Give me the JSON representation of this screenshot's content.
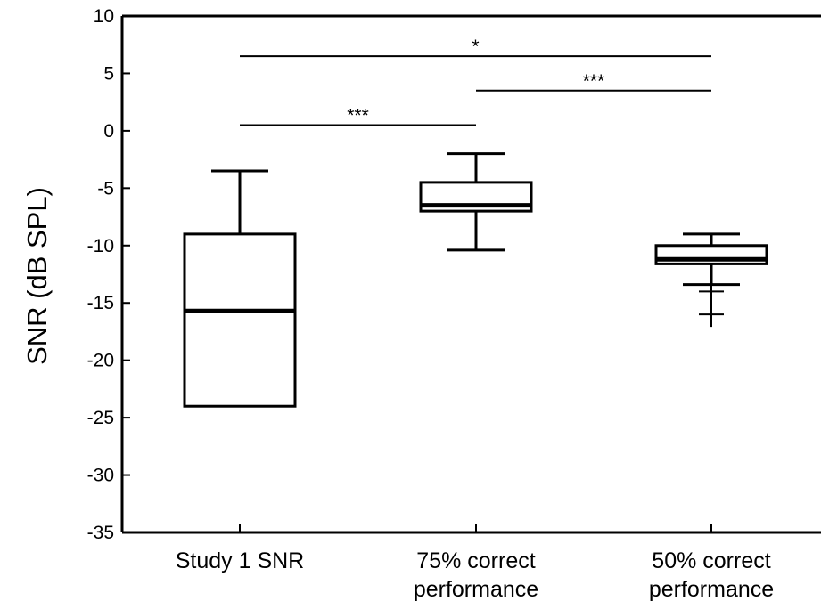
{
  "chart_data": {
    "type": "box",
    "title": "",
    "xlabel": "",
    "ylabel": "SNR (dB SPL)",
    "ylim": [
      -35,
      10
    ],
    "yticks": [
      10,
      5,
      0,
      -5,
      -10,
      -15,
      -20,
      -25,
      -30,
      -35
    ],
    "ytick_labels": [
      "10",
      "5",
      "0",
      "-5",
      "-10",
      "-15",
      "-20",
      "-25",
      "-30",
      "-35"
    ],
    "categories": [
      [
        "Study 1 SNR"
      ],
      [
        "75% correct",
        "performance"
      ],
      [
        "50% correct",
        "performance"
      ]
    ],
    "boxes": [
      {
        "whisker_low": -24,
        "q1": -24,
        "median": -15.7,
        "q3": -9,
        "whisker_high": -3.5,
        "outliers": []
      },
      {
        "whisker_low": -10.4,
        "q1": -7,
        "median": -6.5,
        "q3": -4.5,
        "whisker_high": -2,
        "outliers": []
      },
      {
        "whisker_low": -13.4,
        "q1": -11.6,
        "median": -11.2,
        "q3": -10,
        "whisker_high": -9,
        "outliers": [
          -14,
          -16
        ]
      }
    ],
    "significance": [
      {
        "from": 0,
        "to": 1,
        "y": 0.5,
        "label": "***"
      },
      {
        "from": 1,
        "to": 2,
        "y": 3.5,
        "label": "***"
      },
      {
        "from": 0,
        "to": 2,
        "y": 6.5,
        "label": "*"
      }
    ],
    "grid": false
  }
}
